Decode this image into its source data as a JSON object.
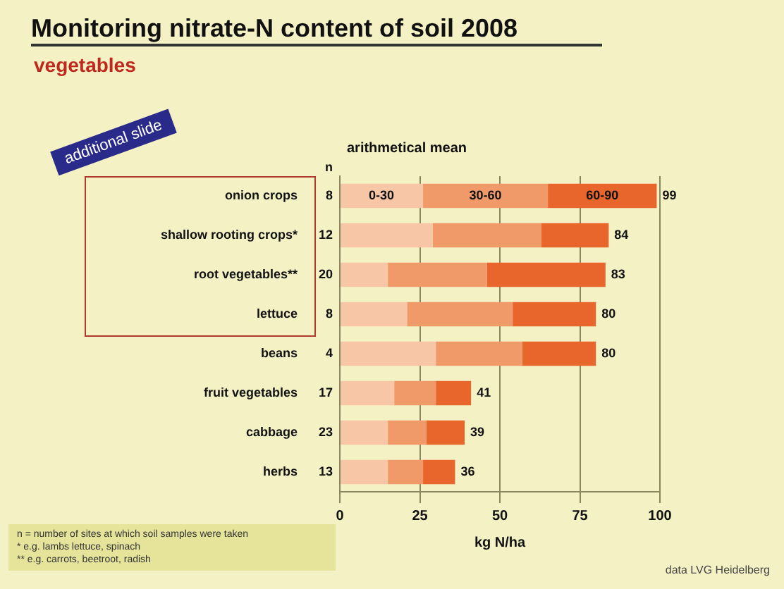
{
  "chart_data": {
    "type": "bar",
    "orientation": "horizontal",
    "stacked": true,
    "title": "Monitoring nitrate-N content of soil 2008",
    "subtitle": "vegetables",
    "xlabel": "kg N/ha",
    "categories": [
      "onion crops",
      "shallow rooting crops*",
      "root vegetables**",
      "lettuce",
      "beans",
      "fruit vegetables",
      "cabbage",
      "herbs"
    ],
    "series": [
      {
        "name": "0-30",
        "color": "#f6c6a6",
        "values": [
          26,
          29,
          15,
          21,
          30,
          17,
          15,
          15
        ]
      },
      {
        "name": "30-60",
        "color": "#f09a6a",
        "values": [
          39,
          34,
          31,
          33,
          27,
          13,
          12,
          11
        ]
      },
      {
        "name": "60-90",
        "color": "#e8652c",
        "values": [
          34,
          21,
          37,
          26,
          23,
          11,
          12,
          10
        ]
      }
    ],
    "totals": [
      "99",
      "84",
      "83",
      "80",
      "80",
      "41",
      "39",
      "36"
    ],
    "xlim": [
      0,
      100
    ],
    "xticks": [
      0,
      25,
      50,
      75,
      100
    ],
    "grid": "x",
    "legend": false,
    "annotations": [
      "additional slide",
      "arithmetical mean",
      "n",
      "8",
      "12",
      "20",
      "8",
      "4",
      "17",
      "23",
      "13",
      "n = number of sites at which soil samples were taken",
      "* e.g. lambs lettuce, spinach",
      "** e.g. carrots, beetroot, radish",
      "data LVG Heidelberg"
    ]
  }
}
